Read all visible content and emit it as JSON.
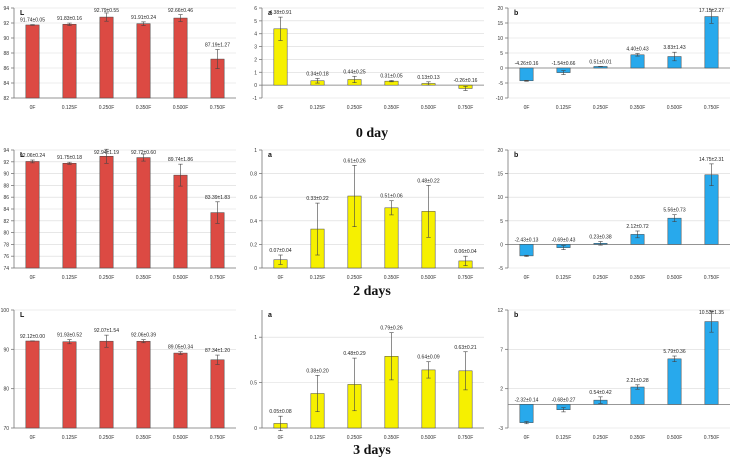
{
  "day_labels": [
    "0 day",
    "2 days",
    "3 days"
  ],
  "colors": {
    "red": "#dc4a43",
    "yellow": "#f6f000",
    "blue": "#28a9ec",
    "axis": "#777777",
    "grid": "#d9d9d9"
  },
  "chart_data": [
    {
      "type": "bar",
      "panel_label": "L",
      "color": "red",
      "categories": [
        "0F",
        "0.125F",
        "0.250F",
        "0.350F",
        "0.500F",
        "0.750F"
      ],
      "values": [
        91.74,
        91.83,
        92.79,
        91.91,
        92.66,
        87.19
      ],
      "errors": [
        0.05,
        0.16,
        0.55,
        0.24,
        0.46,
        1.27
      ],
      "labels": [
        "91.74±0.05",
        "91.83±0.16",
        "92.79±0.55",
        "91.91±0.24",
        "92.66±0.46",
        "87.19±1.27"
      ],
      "ylim": [
        82,
        94
      ],
      "yticks": [
        82,
        84,
        86,
        88,
        90,
        92,
        94
      ]
    },
    {
      "type": "bar",
      "panel_label": "a",
      "color": "yellow",
      "categories": [
        "0F",
        "0.125F",
        "0.250F",
        "0.350F",
        "0.500F",
        "0.750F"
      ],
      "values": [
        4.38,
        0.34,
        0.44,
        0.31,
        0.13,
        -0.26
      ],
      "errors": [
        0.91,
        0.18,
        0.25,
        0.05,
        0.13,
        0.16
      ],
      "labels": [
        "4.38±0.91",
        "0.34±0.18",
        "0.44±0.25",
        "0.31±0.05",
        "0.13±0.13",
        "-0.26±0.16"
      ],
      "ylim": [
        -1,
        6
      ],
      "yticks": [
        -1,
        0,
        1,
        2,
        3,
        4,
        5,
        6
      ]
    },
    {
      "type": "bar",
      "panel_label": "b",
      "color": "blue",
      "categories": [
        "0F",
        "0.125F",
        "0.250F",
        "0.350F",
        "0.500F",
        "0.750F"
      ],
      "values": [
        -4.26,
        -1.54,
        0.51,
        4.4,
        3.83,
        17.15
      ],
      "errors": [
        0.16,
        0.66,
        0.01,
        0.43,
        1.43,
        2.27
      ],
      "labels": [
        "-4.26±0.16",
        "-1.54±0.66",
        "0.51±0.01",
        "4.40±0.43",
        "3.83±1.43",
        "17.15±2.27"
      ],
      "ylim": [
        -10,
        20
      ],
      "yticks": [
        -10,
        -5,
        0,
        5,
        10,
        15,
        20
      ]
    },
    {
      "type": "bar",
      "panel_label": "L",
      "color": "red",
      "categories": [
        "0F",
        "0.125F",
        "0.250F",
        "0.350F",
        "0.500F",
        "0.750F"
      ],
      "values": [
        92.06,
        91.75,
        92.94,
        92.72,
        89.74,
        83.39
      ],
      "errors": [
        0.24,
        0.18,
        1.19,
        0.6,
        1.86,
        1.83
      ],
      "labels": [
        "92.06±0.24",
        "91.75±0.18",
        "92.94±1.19",
        "92.72±0.60",
        "89.74±1.86",
        "83.39±1.83"
      ],
      "ylim": [
        74,
        94
      ],
      "yticks": [
        74,
        76,
        78,
        80,
        82,
        84,
        86,
        88,
        90,
        92,
        94
      ]
    },
    {
      "type": "bar",
      "panel_label": "a",
      "color": "yellow",
      "categories": [
        "0F",
        "0.125F",
        "0.250F",
        "0.350F",
        "0.500F",
        "0.750F"
      ],
      "values": [
        0.07,
        0.33,
        0.61,
        0.51,
        0.48,
        0.06
      ],
      "errors": [
        0.04,
        0.22,
        0.26,
        0.06,
        0.22,
        0.04
      ],
      "labels": [
        "0.07±0.04",
        "0.33±0.22",
        "0.61±0.26",
        "0.51±0.06",
        "0.48±0.22",
        "0.06±0.04"
      ],
      "ylim": [
        0,
        1.0
      ],
      "yticks": [
        0,
        0.2,
        0.4,
        0.6,
        0.8,
        1.0
      ]
    },
    {
      "type": "bar",
      "panel_label": "b",
      "color": "blue",
      "categories": [
        "0F",
        "0.125F",
        "0.250F",
        "0.350F",
        "0.500F",
        "0.750F"
      ],
      "values": [
        -2.43,
        -0.69,
        0.23,
        2.12,
        5.56,
        14.75
      ],
      "errors": [
        0.13,
        0.43,
        0.38,
        0.72,
        0.73,
        2.31
      ],
      "labels": [
        "-2.43±0.13",
        "-0.69±0.43",
        "0.23±0.38",
        "2.12±0.72",
        "5.56±0.73",
        "14.75±2.31"
      ],
      "ylim": [
        -5,
        20
      ],
      "yticks": [
        -5,
        0,
        5,
        10,
        15,
        20
      ]
    },
    {
      "type": "bar",
      "panel_label": "L",
      "color": "red",
      "categories": [
        "0F",
        "0.125F",
        "0.250F",
        "0.350F",
        "0.500F",
        "0.750F"
      ],
      "values": [
        92.12,
        91.93,
        92.07,
        92.06,
        89.05,
        87.34
      ],
      "errors": [
        0.0,
        0.52,
        1.54,
        0.39,
        0.34,
        1.2
      ],
      "labels": [
        "92.12±0.00",
        "91.93±0.52",
        "92.07±1.54",
        "92.06±0.39",
        "89.05±0.34",
        "87.34±1.20"
      ],
      "ylim": [
        70,
        100
      ],
      "yticks": [
        70,
        80,
        90,
        100
      ]
    },
    {
      "type": "bar",
      "panel_label": "a",
      "color": "yellow",
      "categories": [
        "0F",
        "0.125F",
        "0.250F",
        "0.350F",
        "0.500F",
        "0.750F"
      ],
      "values": [
        0.05,
        0.38,
        0.48,
        0.79,
        0.64,
        0.63
      ],
      "errors": [
        0.08,
        0.2,
        0.29,
        0.26,
        0.09,
        0.21
      ],
      "labels": [
        "0.05±0.08",
        "0.38±0.20",
        "0.48±0.29",
        "0.79±0.26",
        "0.64±0.09",
        "0.63±0.21"
      ],
      "ylim": [
        0,
        1.3
      ],
      "yticks": [
        0,
        0.5,
        1
      ]
    },
    {
      "type": "bar",
      "panel_label": "b",
      "color": "blue",
      "categories": [
        "0F",
        "0.125F",
        "0.250F",
        "0.350F",
        "0.500F",
        "0.750F"
      ],
      "values": [
        -2.32,
        -0.68,
        0.54,
        2.21,
        5.79,
        10.53
      ],
      "errors": [
        0.14,
        0.27,
        0.42,
        0.28,
        0.36,
        1.35
      ],
      "labels": [
        "-2.32±0.14",
        "-0.68±0.27",
        "0.54±0.42",
        "2.21±0.28",
        "5.79±0.36",
        "10.53±1.35"
      ],
      "ylim": [
        -3,
        12
      ],
      "yticks": [
        -3,
        2,
        7,
        12
      ]
    }
  ]
}
